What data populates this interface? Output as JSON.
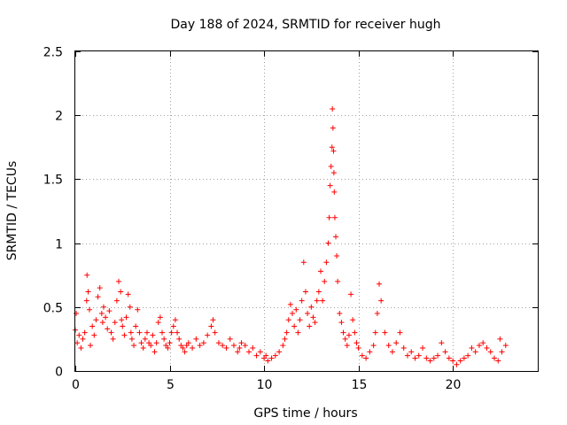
{
  "chart_data": {
    "type": "scatter",
    "title": "Day 188 of 2024, SRMTID for receiver hugh",
    "xlabel": "GPS time / hours",
    "ylabel": "SRMTID / TECUs",
    "xlim": [
      0,
      24.5
    ],
    "ylim": [
      0,
      2.5
    ],
    "xticks": [
      0,
      5,
      10,
      15,
      20
    ],
    "xtick_labels": [
      "0",
      "5",
      "10",
      "15",
      "20"
    ],
    "yticks": [
      0,
      0.5,
      1,
      1.5,
      2,
      2.5
    ],
    "ytick_labels": [
      "0",
      "0.5",
      "1",
      "1.5",
      "2",
      "2.5"
    ],
    "grid": true,
    "marker": "+",
    "color": "#ff0000",
    "series": [
      {
        "name": "SRMTID",
        "x": [
          0.0,
          0.05,
          0.1,
          0.2,
          0.3,
          0.4,
          0.5,
          0.6,
          0.62,
          0.68,
          0.75,
          0.8,
          0.9,
          1.0,
          1.1,
          1.2,
          1.3,
          1.4,
          1.45,
          1.5,
          1.6,
          1.7,
          1.8,
          1.9,
          2.0,
          2.1,
          2.2,
          2.3,
          2.4,
          2.45,
          2.5,
          2.6,
          2.7,
          2.8,
          2.9,
          2.95,
          3.0,
          3.1,
          3.2,
          3.3,
          3.4,
          3.5,
          3.6,
          3.7,
          3.8,
          3.9,
          4.0,
          4.1,
          4.2,
          4.3,
          4.4,
          4.5,
          4.6,
          4.7,
          4.8,
          4.9,
          5.0,
          5.1,
          5.2,
          5.3,
          5.4,
          5.5,
          5.6,
          5.7,
          5.8,
          5.9,
          6.0,
          6.2,
          6.4,
          6.6,
          6.8,
          7.0,
          7.2,
          7.3,
          7.4,
          7.6,
          7.8,
          8.0,
          8.2,
          8.4,
          8.6,
          8.7,
          8.8,
          9.0,
          9.2,
          9.4,
          9.6,
          9.8,
          10.0,
          10.1,
          10.2,
          10.4,
          10.6,
          10.8,
          11.0,
          11.1,
          11.2,
          11.3,
          11.4,
          11.5,
          11.6,
          11.7,
          11.8,
          11.9,
          12.0,
          12.1,
          12.2,
          12.3,
          12.4,
          12.5,
          12.6,
          12.7,
          12.8,
          12.9,
          13.0,
          13.1,
          13.2,
          13.3,
          13.4,
          13.45,
          13.5,
          13.55,
          13.6,
          13.62,
          13.65,
          13.68,
          13.7,
          13.72,
          13.75,
          13.8,
          13.85,
          13.9,
          14.0,
          14.1,
          14.2,
          14.3,
          14.4,
          14.5,
          14.6,
          14.7,
          14.8,
          14.9,
          15.0,
          15.2,
          15.4,
          15.6,
          15.8,
          15.9,
          16.0,
          16.1,
          16.2,
          16.4,
          16.6,
          16.8,
          17.0,
          17.2,
          17.4,
          17.6,
          17.8,
          18.0,
          18.2,
          18.4,
          18.6,
          18.8,
          19.0,
          19.2,
          19.4,
          19.6,
          19.8,
          20.0,
          20.2,
          20.4,
          20.6,
          20.8,
          21.0,
          21.2,
          21.4,
          21.6,
          21.8,
          22.0,
          22.2,
          22.4,
          22.5,
          22.6,
          22.8
        ],
        "y": [
          0.32,
          0.45,
          0.22,
          0.28,
          0.18,
          0.25,
          0.3,
          0.55,
          0.75,
          0.62,
          0.48,
          0.2,
          0.35,
          0.28,
          0.4,
          0.58,
          0.65,
          0.45,
          0.38,
          0.5,
          0.42,
          0.33,
          0.47,
          0.3,
          0.25,
          0.38,
          0.55,
          0.7,
          0.62,
          0.4,
          0.35,
          0.28,
          0.42,
          0.6,
          0.5,
          0.3,
          0.25,
          0.2,
          0.35,
          0.48,
          0.3,
          0.22,
          0.18,
          0.25,
          0.3,
          0.22,
          0.2,
          0.28,
          0.15,
          0.22,
          0.38,
          0.42,
          0.3,
          0.25,
          0.2,
          0.18,
          0.22,
          0.3,
          0.35,
          0.4,
          0.3,
          0.25,
          0.2,
          0.18,
          0.15,
          0.2,
          0.22,
          0.18,
          0.25,
          0.2,
          0.22,
          0.28,
          0.35,
          0.4,
          0.3,
          0.22,
          0.2,
          0.18,
          0.25,
          0.2,
          0.15,
          0.18,
          0.22,
          0.2,
          0.15,
          0.18,
          0.12,
          0.15,
          0.1,
          0.12,
          0.08,
          0.1,
          0.12,
          0.15,
          0.2,
          0.25,
          0.3,
          0.4,
          0.52,
          0.45,
          0.35,
          0.48,
          0.3,
          0.4,
          0.55,
          0.85,
          0.62,
          0.45,
          0.35,
          0.5,
          0.42,
          0.38,
          0.55,
          0.62,
          0.78,
          0.55,
          0.7,
          0.85,
          1.0,
          1.2,
          1.45,
          1.6,
          1.75,
          2.05,
          1.9,
          1.72,
          1.55,
          1.4,
          1.2,
          1.05,
          0.9,
          0.7,
          0.45,
          0.38,
          0.3,
          0.25,
          0.2,
          0.28,
          0.6,
          0.4,
          0.3,
          0.22,
          0.18,
          0.12,
          0.1,
          0.15,
          0.2,
          0.3,
          0.45,
          0.68,
          0.55,
          0.3,
          0.2,
          0.15,
          0.22,
          0.3,
          0.18,
          0.12,
          0.15,
          0.1,
          0.12,
          0.18,
          0.1,
          0.08,
          0.1,
          0.12,
          0.22,
          0.15,
          0.1,
          0.08,
          0.05,
          0.08,
          0.1,
          0.12,
          0.18,
          0.15,
          0.2,
          0.22,
          0.18,
          0.15,
          0.1,
          0.08,
          0.25,
          0.15,
          0.2
        ]
      }
    ]
  }
}
